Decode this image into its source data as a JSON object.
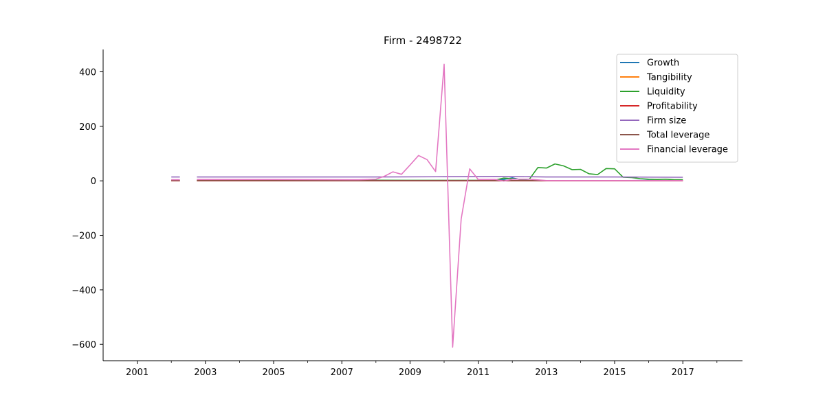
{
  "chart_data": {
    "type": "line",
    "title": "Firm - 2498722",
    "xlabel": "",
    "ylabel": "",
    "xlim": [
      2000.0,
      2018.75
    ],
    "ylim": [
      -660,
      482
    ],
    "x_ticks": [
      2001,
      2003,
      2005,
      2007,
      2009,
      2011,
      2013,
      2015,
      2017
    ],
    "x_minor_ticks": [
      2002,
      2004,
      2006,
      2008,
      2010,
      2012,
      2014,
      2016,
      2018
    ],
    "y_ticks": [
      400,
      200,
      0,
      -200,
      -400,
      -600
    ],
    "y_tick_labels": [
      "400",
      "200",
      "0",
      "−200",
      "−400",
      "−600"
    ],
    "grid": false,
    "legend_position": "top-right",
    "series": [
      {
        "name": "Growth",
        "color": "#1f77b4",
        "points": [
          [
            2002.0,
            0
          ],
          [
            2002.25,
            0
          ],
          null,
          [
            2002.75,
            0
          ],
          [
            2003.5,
            0
          ],
          [
            2006.0,
            0
          ],
          [
            2009.0,
            0
          ],
          [
            2011.0,
            0
          ],
          [
            2011.5,
            1
          ],
          [
            2011.75,
            5
          ],
          [
            2012.0,
            11
          ],
          [
            2012.25,
            4
          ],
          [
            2012.5,
            1
          ],
          [
            2013.0,
            0
          ],
          [
            2015.0,
            0
          ],
          [
            2016.0,
            2
          ],
          [
            2016.5,
            1
          ],
          [
            2017.0,
            3
          ]
        ]
      },
      {
        "name": "Tangibility",
        "color": "#ff7f0e",
        "points": [
          [
            2002.0,
            0
          ],
          [
            2002.25,
            0
          ],
          null,
          [
            2002.75,
            0
          ],
          [
            2017.0,
            0
          ]
        ]
      },
      {
        "name": "Liquidity",
        "color": "#2ca02c",
        "points": [
          [
            2002.0,
            3
          ],
          [
            2002.25,
            3
          ],
          null,
          [
            2002.75,
            3
          ],
          [
            2005.0,
            3
          ],
          [
            2009.0,
            2
          ],
          [
            2011.0,
            2
          ],
          [
            2011.5,
            3
          ],
          [
            2011.75,
            10
          ],
          [
            2012.0,
            8
          ],
          [
            2012.25,
            5
          ],
          [
            2012.5,
            6
          ],
          [
            2012.75,
            49
          ],
          [
            2013.0,
            47
          ],
          [
            2013.25,
            62
          ],
          [
            2013.5,
            55
          ],
          [
            2013.75,
            41
          ],
          [
            2014.0,
            42
          ],
          [
            2014.25,
            26
          ],
          [
            2014.5,
            23
          ],
          [
            2014.75,
            45
          ],
          [
            2015.0,
            44
          ],
          [
            2015.25,
            13
          ],
          [
            2015.5,
            12
          ],
          [
            2015.75,
            8
          ],
          [
            2016.0,
            6
          ],
          [
            2016.25,
            5
          ],
          [
            2016.5,
            6
          ],
          [
            2016.75,
            4
          ],
          [
            2017.0,
            4
          ]
        ]
      },
      {
        "name": "Profitability",
        "color": "#d62728",
        "points": [
          [
            2002.0,
            0
          ],
          [
            2002.25,
            0
          ],
          null,
          [
            2002.75,
            0
          ],
          [
            2017.0,
            0
          ]
        ]
      },
      {
        "name": "Firm size",
        "color": "#9467bd",
        "points": [
          [
            2002.0,
            14
          ],
          [
            2002.25,
            14
          ],
          null,
          [
            2002.75,
            14
          ],
          [
            2008.0,
            14
          ],
          [
            2010.0,
            15
          ],
          [
            2011.5,
            16
          ],
          [
            2012.5,
            15
          ],
          [
            2013.0,
            14
          ],
          [
            2015.0,
            14
          ],
          [
            2017.0,
            13
          ]
        ]
      },
      {
        "name": "Total leverage",
        "color": "#8c564b",
        "points": [
          [
            2002.0,
            1
          ],
          [
            2002.25,
            1
          ],
          null,
          [
            2002.75,
            1
          ],
          [
            2017.0,
            1
          ]
        ]
      },
      {
        "name": "Financial leverage",
        "color": "#e377c2",
        "points": [
          [
            2002.0,
            4
          ],
          [
            2002.25,
            4
          ],
          null,
          [
            2002.75,
            5
          ],
          [
            2005.0,
            5
          ],
          [
            2007.5,
            4
          ],
          [
            2008.0,
            6
          ],
          [
            2008.25,
            17
          ],
          [
            2008.5,
            33
          ],
          [
            2008.75,
            24
          ],
          [
            2009.0,
            58
          ],
          [
            2009.25,
            93
          ],
          [
            2009.5,
            78
          ],
          [
            2009.75,
            34
          ],
          [
            2010.0,
            428
          ],
          [
            2010.25,
            -610
          ],
          [
            2010.5,
            -140
          ],
          [
            2010.75,
            44
          ],
          [
            2011.0,
            5
          ],
          [
            2011.5,
            5
          ],
          [
            2011.75,
            -1
          ],
          [
            2012.0,
            6
          ],
          [
            2012.5,
            6
          ],
          [
            2013.0,
            1
          ],
          [
            2017.0,
            1
          ]
        ]
      }
    ]
  }
}
